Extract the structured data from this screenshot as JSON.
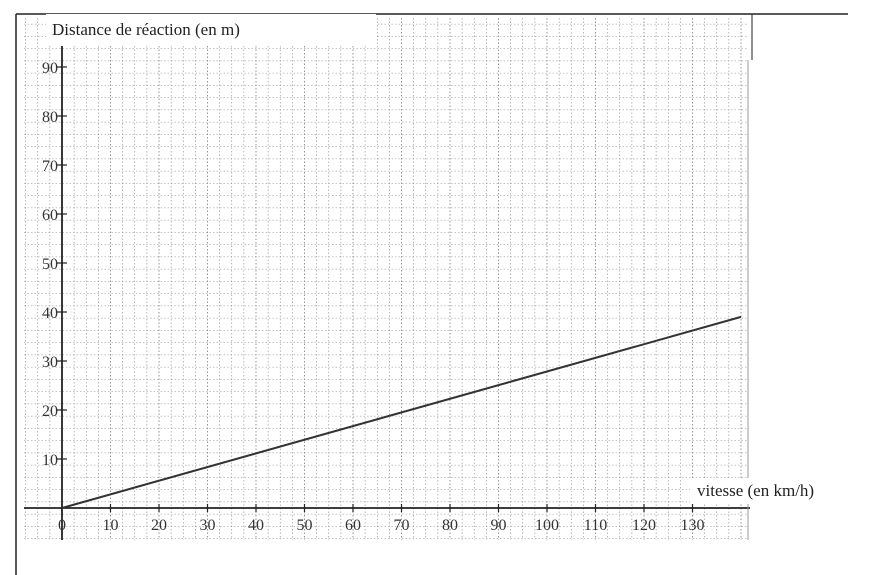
{
  "chart_data": {
    "type": "line",
    "ylabel": "Distance de réaction (en m)",
    "xlabel": "vitesse (en km/h)",
    "x_ticks": [
      0,
      10,
      20,
      30,
      40,
      50,
      60,
      70,
      80,
      90,
      100,
      110,
      120,
      130
    ],
    "y_ticks": [
      10,
      20,
      30,
      40,
      50,
      60,
      70,
      80,
      90
    ],
    "xlim": [
      0,
      140
    ],
    "ylim": [
      0,
      95
    ],
    "grid": true,
    "series": [
      {
        "x": [
          0,
          140
        ],
        "y": [
          0,
          39
        ]
      }
    ],
    "colors": {
      "line": "#333333",
      "grid": "#8a8a8a",
      "axis": "#222222"
    }
  }
}
